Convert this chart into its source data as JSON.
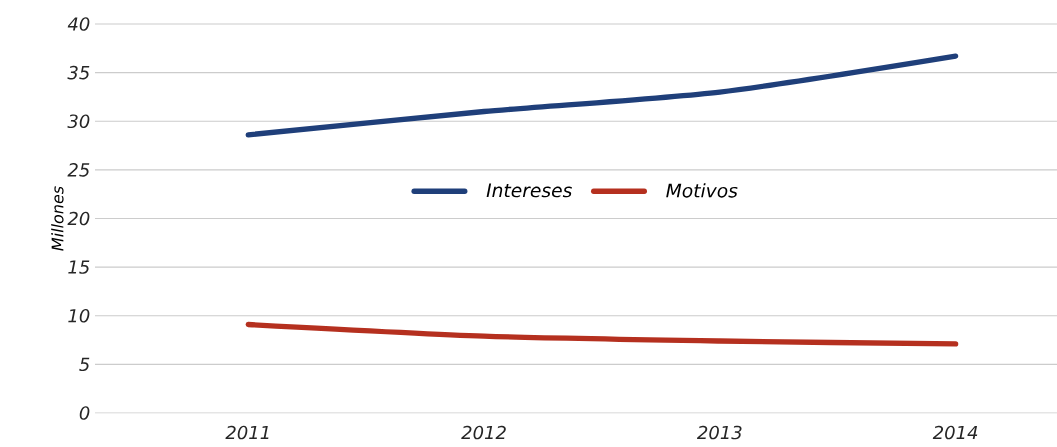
{
  "chart_data": {
    "type": "line",
    "ylabel": "Millones",
    "categories": [
      "2011",
      "2012",
      "2013",
      "2014"
    ],
    "series": [
      {
        "name": "Intereses",
        "color": "#1f3f7a",
        "values": [
          28.6,
          31,
          33,
          36.7
        ]
      },
      {
        "name": "Motivos",
        "color": "#b5301f",
        "values": [
          9.1,
          7.9,
          7.4,
          7.1
        ]
      }
    ],
    "ylim": [
      0,
      40
    ],
    "yticks": [
      0,
      5,
      10,
      15,
      20,
      25,
      30,
      35,
      40
    ],
    "grid": "y",
    "legend": "center",
    "line_style": "solid"
  }
}
